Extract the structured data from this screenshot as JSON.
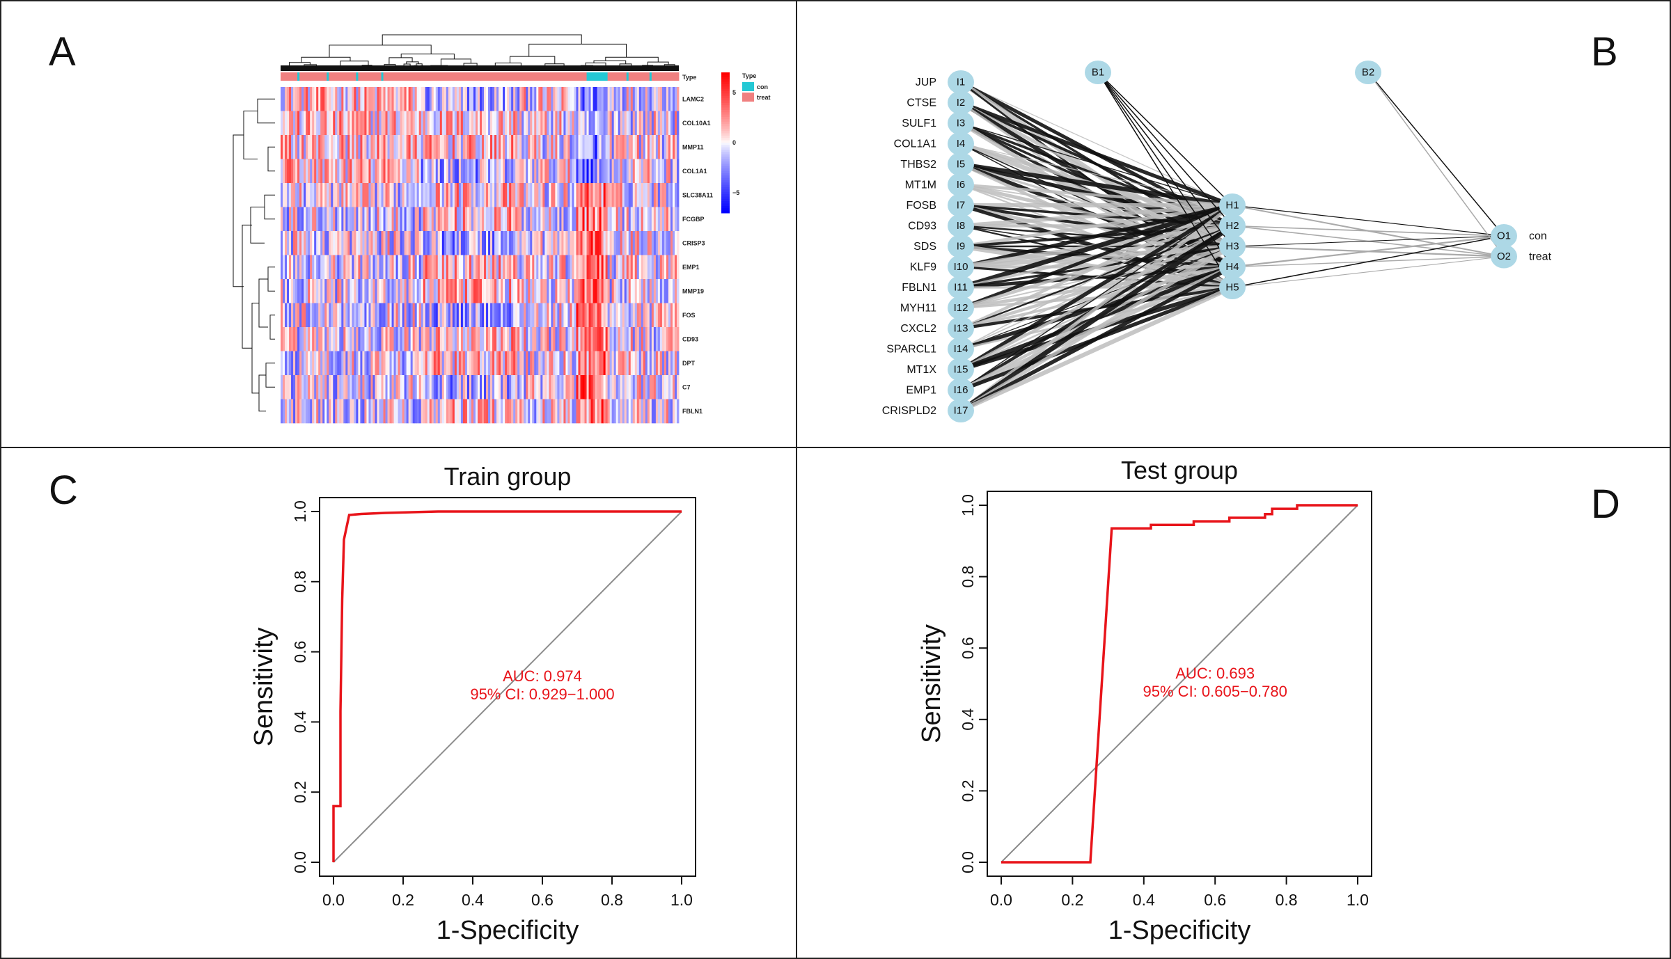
{
  "panels": {
    "a": "A",
    "b": "B",
    "c": "C",
    "d": "D"
  },
  "colors": {
    "heat_high": "#ff0000",
    "heat_mid": "#ffffff",
    "heat_low": "#0000ff",
    "con": "#24c8d4",
    "treat": "#f08080",
    "node_fill": "#add8e6",
    "roc_curve": "#e8141a",
    "diagonal": "#8c8c8c"
  },
  "heatmap": {
    "rows": [
      "LAMC2",
      "COL10A1",
      "MMP11",
      "COL1A1",
      "SLC38A11",
      "FCGBP",
      "CRISP3",
      "EMP1",
      "MMP19",
      "FOS",
      "CD93",
      "DPT",
      "C7",
      "FBLN1"
    ],
    "annotation_label": "Type",
    "legend_title": "Type",
    "legend_items": [
      "con",
      "treat"
    ],
    "colorbar_ticks": [
      "5",
      "0",
      "−5"
    ]
  },
  "network": {
    "inputs": [
      "I1",
      "I2",
      "I3",
      "I4",
      "I5",
      "I6",
      "I7",
      "I8",
      "I9",
      "I10",
      "I11",
      "I12",
      "I13",
      "I14",
      "I15",
      "I16",
      "I17"
    ],
    "input_genes": [
      "JUP",
      "CTSE",
      "SULF1",
      "COL1A1",
      "THBS2",
      "MT1M",
      "FOSB",
      "CD93",
      "SDS",
      "KLF9",
      "FBLN1",
      "MYH11",
      "CXCL2",
      "SPARCL1",
      "MT1X",
      "EMP1",
      "CRISPLD2"
    ],
    "hidden": [
      "H1",
      "H2",
      "H3",
      "H4",
      "H5"
    ],
    "outputs": [
      "O1",
      "O2"
    ],
    "output_labels": [
      "con",
      "treat"
    ],
    "bias": [
      "B1",
      "B2"
    ]
  },
  "chart_data": [
    {
      "type": "line",
      "title": "Train group",
      "xlabel": "1-Specificity",
      "ylabel": "Sensitivity",
      "xlim": [
        0,
        1
      ],
      "ylim": [
        0,
        1
      ],
      "xticks": [
        "0.0",
        "0.2",
        "0.4",
        "0.6",
        "0.8",
        "1.0"
      ],
      "yticks": [
        "0.0",
        "0.2",
        "0.4",
        "0.6",
        "0.8",
        "1.0"
      ],
      "series": [
        {
          "x": [
            0,
            0,
            0.02,
            0.02,
            0.025,
            0.03,
            0.045,
            0.08,
            0.15,
            0.3,
            0.6,
            1.0
          ],
          "y": [
            0,
            0.16,
            0.16,
            0.43,
            0.75,
            0.92,
            0.99,
            0.993,
            0.996,
            1.0,
            1.0,
            1.0
          ]
        }
      ],
      "auc_text": "AUC: 0.974",
      "ci_text": "95% CI: 0.929−1.000"
    },
    {
      "type": "line",
      "title": "Test group",
      "xlabel": "1-Specificity",
      "ylabel": "Sensitivity",
      "xlim": [
        0,
        1
      ],
      "ylim": [
        0,
        1
      ],
      "xticks": [
        "0.0",
        "0.2",
        "0.4",
        "0.6",
        "0.8",
        "1.0"
      ],
      "yticks": [
        "0.0",
        "0.2",
        "0.4",
        "0.6",
        "0.8",
        "1.0"
      ],
      "series": [
        {
          "x": [
            0,
            0.25,
            0.31,
            0.42,
            0.42,
            0.54,
            0.54,
            0.64,
            0.64,
            0.74,
            0.74,
            0.76,
            0.76,
            0.83,
            0.83,
            1.0
          ],
          "y": [
            0,
            0,
            0.935,
            0.935,
            0.945,
            0.945,
            0.955,
            0.955,
            0.965,
            0.965,
            0.975,
            0.975,
            0.99,
            0.99,
            1.0,
            1.0
          ]
        }
      ],
      "auc_text": "AUC: 0.693",
      "ci_text": "95% CI: 0.605−0.780"
    }
  ]
}
